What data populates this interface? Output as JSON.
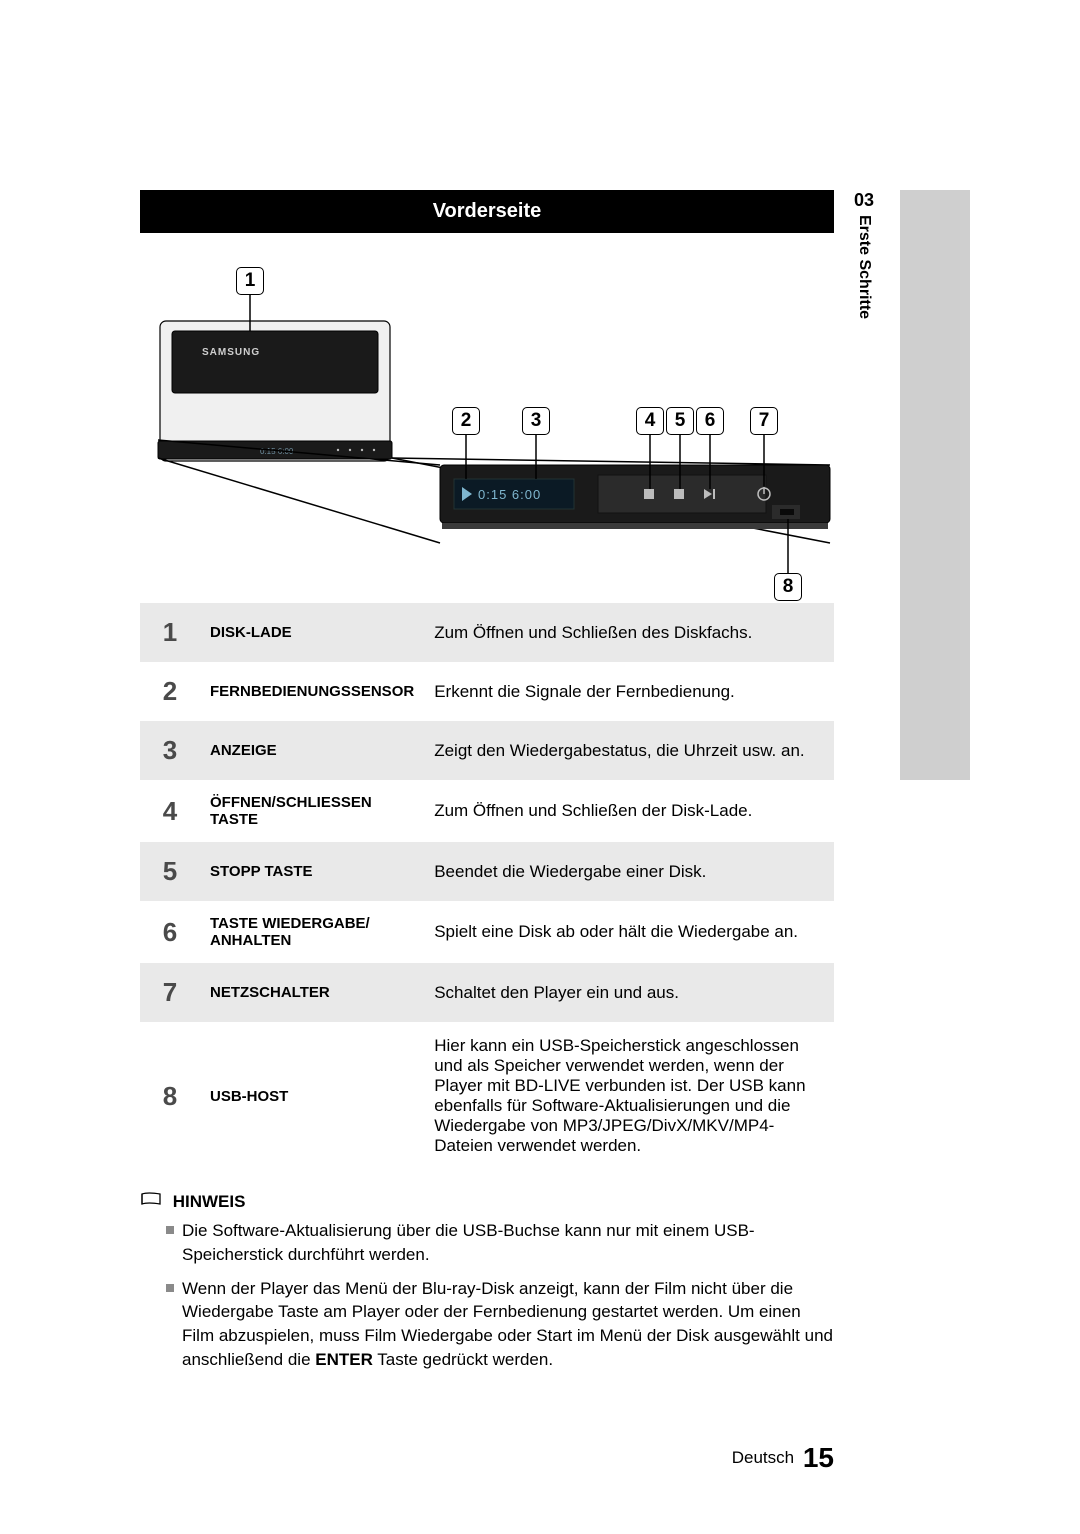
{
  "section": {
    "title": "Vorderseite",
    "chapter_num": "03",
    "chapter_label": "Erste Schritte"
  },
  "diagram": {
    "callouts": [
      "1",
      "2",
      "3",
      "4",
      "5",
      "6",
      "7",
      "8"
    ],
    "brand": "SAMSUNG",
    "time_display": "0:15 6:00",
    "colors": {
      "body": "#1a1a1a",
      "plate": "#f0f0f0",
      "outline": "#000000"
    }
  },
  "parts": [
    {
      "n": "1",
      "label": "DISK-LADE",
      "desc": "Zum Öffnen und Schließen des Diskfachs."
    },
    {
      "n": "2",
      "label": "FERNBEDIENUNGSSENSOR",
      "desc": "Erkennt die Signale der Fernbedienung."
    },
    {
      "n": "3",
      "label": "ANZEIGE",
      "desc": "Zeigt den Wiedergabestatus, die Uhrzeit usw. an."
    },
    {
      "n": "4",
      "label": "ÖFFNEN/SCHLIESSEN TASTE",
      "desc": "Zum Öffnen und Schließen der Disk-Lade."
    },
    {
      "n": "5",
      "label": "STOPP TASTE",
      "desc": "Beendet die Wiedergabe einer Disk."
    },
    {
      "n": "6",
      "label": "TASTE WIEDERGABE/ ANHALTEN",
      "desc": "Spielt eine Disk ab oder hält die Wiedergabe an."
    },
    {
      "n": "7",
      "label": "NETZSCHALTER",
      "desc": "Schaltet den Player ein und aus."
    },
    {
      "n": "8",
      "label": "USB-HOST",
      "desc": "Hier kann ein USB-Speicherstick angeschlossen und als Speicher verwendet werden, wenn der Player mit BD-LIVE verbunden ist. Der USB kann ebenfalls für Software-Aktualisierungen und die Wiedergabe von MP3/JPEG/DivX/MKV/MP4-Dateien verwendet werden."
    }
  ],
  "hinweis": {
    "heading": "HINWEIS",
    "items": [
      "Die Software-Aktualisierung über die USB-Buchse kann nur mit einem USB-Speicherstick durchführt werden.",
      "Wenn der Player das Menü der Blu-ray-Disk anzeigt, kann der Film nicht über die Wiedergabe Taste am Player oder der Fernbedienung gestartet werden. Um einen Film abzuspielen, muss Film Wiedergabe oder Start im Menü der Disk ausgewählt und anschließend die ENTER Taste gedrückt werden."
    ],
    "enter_word": "ENTER"
  },
  "footer": {
    "language": "Deutsch",
    "page": "15"
  }
}
